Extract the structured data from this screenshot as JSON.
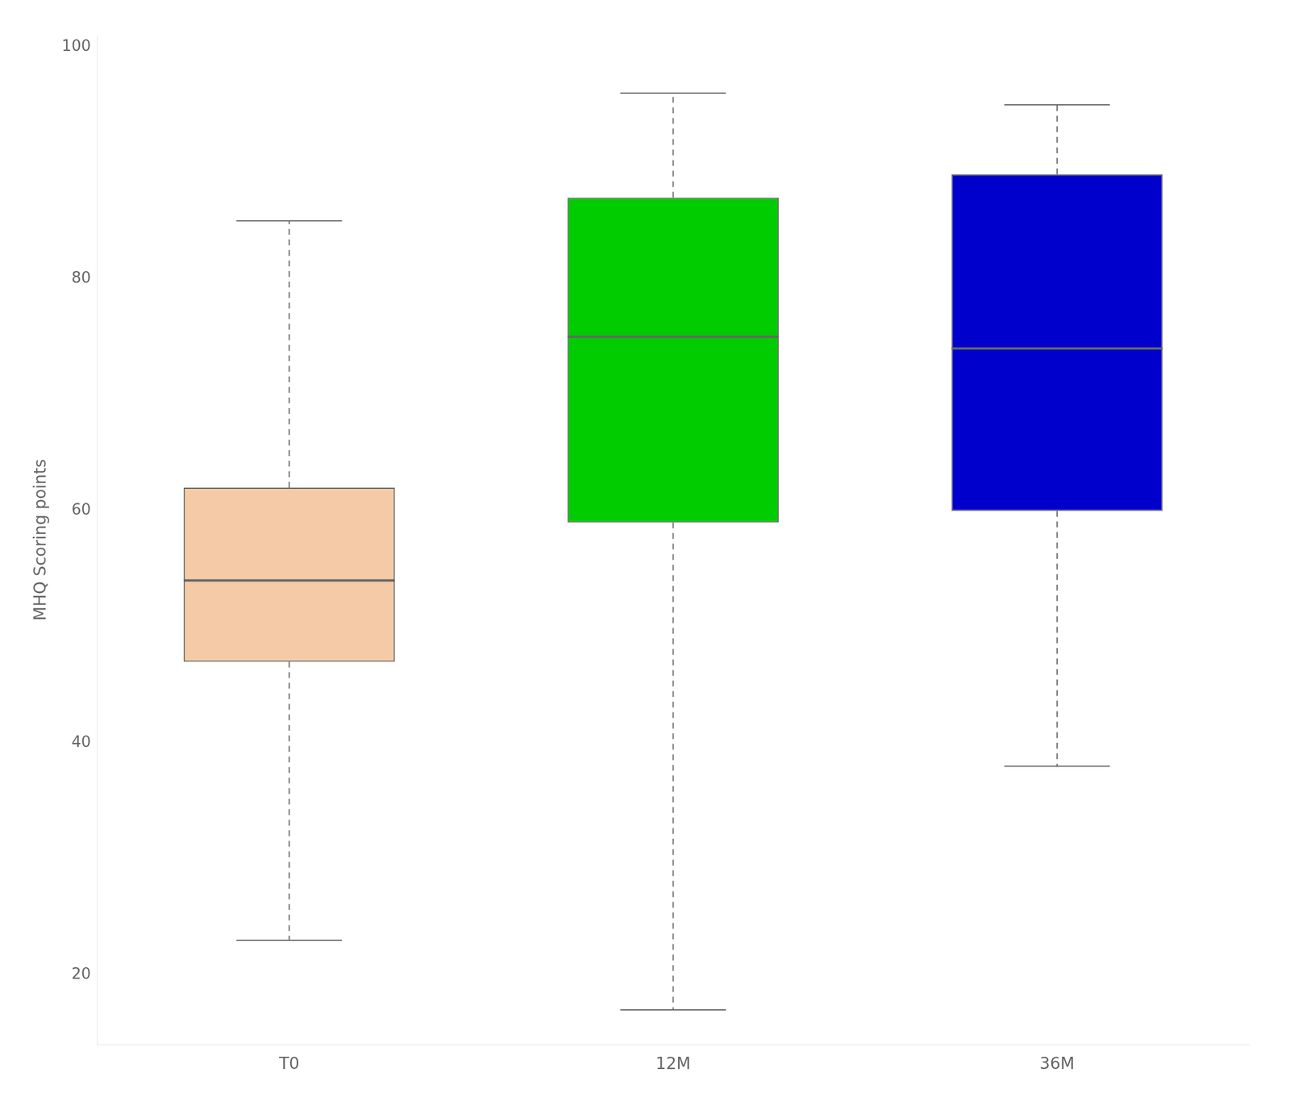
{
  "chart_data": {
    "type": "box",
    "categories": [
      "T0",
      "12M",
      "36M"
    ],
    "boxes": [
      {
        "q1": 47,
        "median": 54,
        "q3": 62,
        "whisker_low": 23,
        "whisker_high": 85
      },
      {
        "q1": 59,
        "median": 75,
        "q3": 87,
        "whisker_low": 17,
        "whisker_high": 96
      },
      {
        "q1": 60,
        "median": 74,
        "q3": 89,
        "whisker_low": 38,
        "whisker_high": 95
      }
    ],
    "colors": [
      "#F5CBA7",
      "#00CC00",
      "#0000CC"
    ],
    "ylabel": "MHQ Scoring points",
    "ylim": [
      14,
      101
    ],
    "yticks": [
      20,
      40,
      60,
      80,
      100
    ],
    "grid": false
  }
}
